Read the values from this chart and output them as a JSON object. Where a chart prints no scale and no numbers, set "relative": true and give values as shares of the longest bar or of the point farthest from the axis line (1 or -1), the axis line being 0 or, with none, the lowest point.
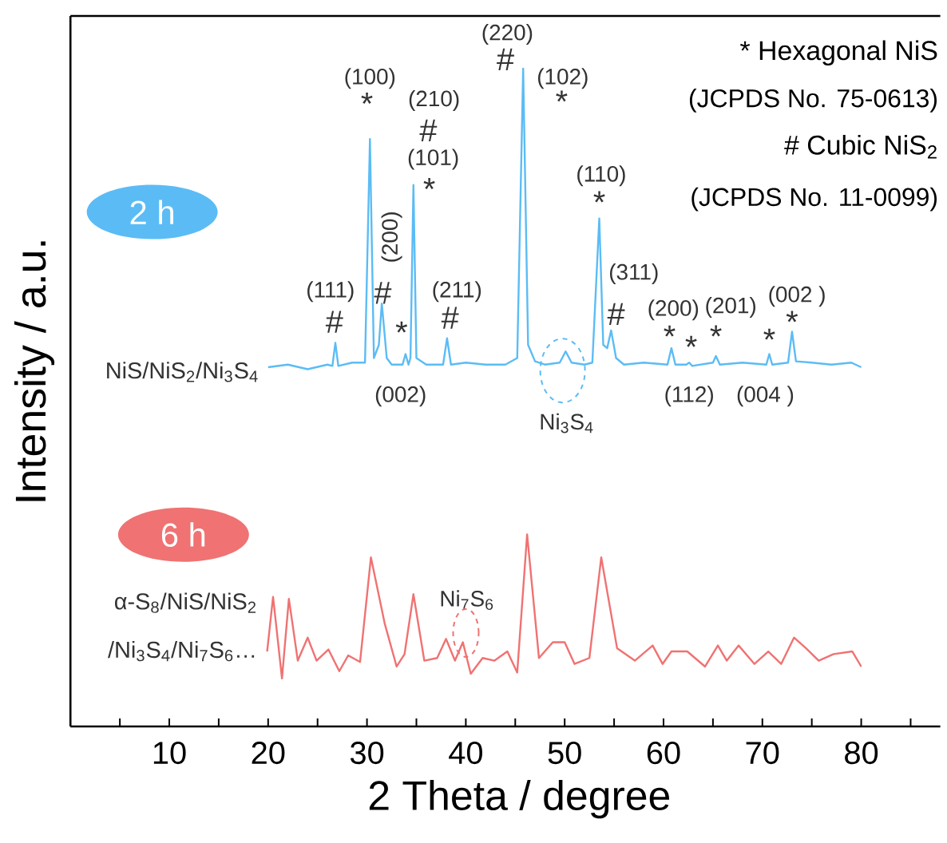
{
  "chart_data": {
    "type": "line",
    "relative": true,
    "xlabel": "2 Theta / degree",
    "ylabel": "Intensity / a.u.",
    "grid": false,
    "marker": "none",
    "line_style": "solid",
    "xlim": [
      0,
      88
    ],
    "xticks": [
      {
        "value": 5,
        "label": null
      },
      10,
      {
        "value": 15,
        "label": null
      },
      20,
      {
        "value": 25,
        "label": null
      },
      30,
      {
        "value": 35,
        "label": null
      },
      40,
      {
        "value": 45,
        "label": null
      },
      50,
      {
        "value": 55,
        "label": null
      },
      60,
      {
        "value": 65,
        "label": null
      },
      70,
      {
        "value": 75,
        "label": null
      },
      80,
      {
        "value": 85,
        "label": null
      }
    ],
    "series": [
      {
        "name": "2 h",
        "color": "#5bbcf5",
        "x": [
          20,
          22,
          24,
          26,
          26.5,
          26.8,
          27.1,
          28.5,
          29.8,
          30.3,
          30.7,
          31.2,
          31.5,
          32,
          32.5,
          33.6,
          33.9,
          34.2,
          34.4,
          34.7,
          35.0,
          36,
          37.7,
          38.1,
          38.5,
          40,
          42,
          44,
          45.2,
          45.8,
          46.3,
          47,
          48,
          49.5,
          50.1,
          50.7,
          52,
          52.8,
          53.5,
          53.9,
          54.3,
          54.7,
          55.2,
          56,
          58,
          60.4,
          60.8,
          61.2,
          62.3,
          62.6,
          62.9,
          65,
          65.3,
          65.7,
          68,
          70.4,
          70.7,
          71,
          72.6,
          73,
          73.4,
          75,
          77,
          79,
          80
        ],
        "values": [
          0.546,
          0.55,
          0.543,
          0.55,
          0.548,
          0.583,
          0.548,
          0.553,
          0.553,
          0.893,
          0.56,
          0.58,
          0.643,
          0.56,
          0.55,
          0.55,
          0.566,
          0.55,
          0.56,
          0.823,
          0.56,
          0.55,
          0.55,
          0.59,
          0.55,
          0.553,
          0.55,
          0.55,
          0.56,
          1.0,
          0.58,
          0.555,
          0.55,
          0.553,
          0.57,
          0.553,
          0.55,
          0.553,
          0.772,
          0.58,
          0.575,
          0.602,
          0.56,
          0.55,
          0.553,
          0.55,
          0.575,
          0.55,
          0.55,
          0.553,
          0.548,
          0.553,
          0.563,
          0.55,
          0.553,
          0.55,
          0.566,
          0.55,
          0.553,
          0.6,
          0.555,
          0.553,
          0.55,
          0.553,
          0.546
        ]
      },
      {
        "name": "6 h",
        "color": "#f07272",
        "x": [
          19.9,
          20.5,
          21.4,
          22.1,
          23.0,
          24.0,
          24.9,
          26.1,
          27.2,
          28.1,
          29.3,
          30.4,
          31.8,
          33.0,
          33.8,
          34.7,
          35.8,
          37.1,
          38.0,
          38.9,
          39.7,
          40.5,
          41.7,
          42.9,
          44.2,
          45.2,
          46.2,
          47.4,
          48.8,
          50.0,
          51.0,
          52.5,
          53.7,
          55.3,
          57.1,
          58.9,
          59.9,
          60.8,
          62.4,
          64.2,
          65.5,
          66.4,
          67.6,
          69.2,
          70.6,
          71.9,
          73.2,
          74.4,
          75.7,
          77.2,
          79.1,
          80
        ],
        "values": [
          0.114,
          0.197,
          0.073,
          0.194,
          0.1,
          0.135,
          0.1,
          0.117,
          0.084,
          0.108,
          0.098,
          0.257,
          0.156,
          0.091,
          0.11,
          0.201,
          0.1,
          0.104,
          0.133,
          0.1,
          0.128,
          0.08,
          0.104,
          0.1,
          0.114,
          0.082,
          0.292,
          0.104,
          0.128,
          0.128,
          0.095,
          0.104,
          0.257,
          0.119,
          0.1,
          0.123,
          0.095,
          0.114,
          0.114,
          0.091,
          0.123,
          0.1,
          0.123,
          0.095,
          0.114,
          0.095,
          0.135,
          0.119,
          0.1,
          0.11,
          0.114,
          0.091
        ]
      }
    ],
    "annotations": [
      "* Hexagonal NiS",
      "(JCPDS No. 75-0613)",
      "# Cubic NiS$_{2}$",
      "(JCPDS No. 11-0099)",
      {
        "text": "(220)",
        "x": 45.8,
        "y": 1.0
      },
      {
        "text": "#",
        "x": 45.8,
        "y": 1.0
      },
      {
        "text": "(100)",
        "x": 30.3,
        "y": 0.893
      },
      {
        "text": "*",
        "x": 30.3,
        "y": 0.893
      },
      "(210)",
      {
        "text": "#",
        "x": 34.7,
        "y": 0.823
      },
      {
        "text": "(101)",
        "x": 34.7,
        "y": 0.823
      },
      {
        "text": "*",
        "x": 34.7,
        "y": 0.823
      },
      {
        "text": "(102)",
        "x": 45.8,
        "y": 1.0
      },
      {
        "text": "*",
        "x": 45.8,
        "y": 1.0
      },
      {
        "text": "(200)",
        "x": 31.5,
        "y": 0.643
      },
      {
        "text": "#",
        "x": 31.5,
        "y": 0.643
      },
      {
        "text": "(111)",
        "x": 26.8,
        "y": 0.583
      },
      {
        "text": "#",
        "x": 26.8,
        "y": 0.583
      },
      {
        "text": "*",
        "x": 33.9,
        "y": 0.566
      },
      {
        "text": "(211)",
        "x": 38.1,
        "y": 0.59
      },
      {
        "text": "#",
        "x": 38.1,
        "y": 0.59
      },
      {
        "text": "(002)",
        "x": 33.9,
        "y": 0.566
      },
      {
        "text": "(110)",
        "x": 53.5,
        "y": 0.772
      },
      {
        "text": "*",
        "x": 53.5,
        "y": 0.772
      },
      {
        "text": "(311)",
        "x": 54.7,
        "y": 0.602
      },
      {
        "text": "#",
        "x": 54.7,
        "y": 0.602
      },
      {
        "text": "(200)",
        "x": 60.8,
        "y": 0.575
      },
      {
        "text": "*",
        "x": 60.8,
        "y": 0.575
      },
      {
        "text": "*",
        "x": 62.6,
        "y": 0.553
      },
      {
        "text": "(201)",
        "x": 65.3,
        "y": 0.563
      },
      {
        "text": "*",
        "x": 65.3,
        "y": 0.563
      },
      {
        "text": "*",
        "x": 70.7,
        "y": 0.566
      },
      {
        "text": "(002 )",
        "x": 73.0,
        "y": 0.6
      },
      {
        "text": "*",
        "x": 73.0,
        "y": 0.6
      },
      {
        "text": "(112)",
        "x": 62.6,
        "y": 0.553
      },
      {
        "text": "(004 )",
        "x": 70.7,
        "y": 0.566
      },
      {
        "text": "Ni$_{3}$S$_{4}$",
        "x": 50.1,
        "y": 0.57
      },
      {
        "text": "Ni$_{7}$S$_{6}$",
        "x": 39.7,
        "y": 0.128
      },
      "NiS/NiS$_{2}$/Ni$_{3}$S$_{4}$",
      "α-S$_{8}$/NiS/NiS$_{2}$",
      "/Ni$_{3}$S$_{4}$/Ni$_{7}$S$_{6}$…"
    ]
  }
}
